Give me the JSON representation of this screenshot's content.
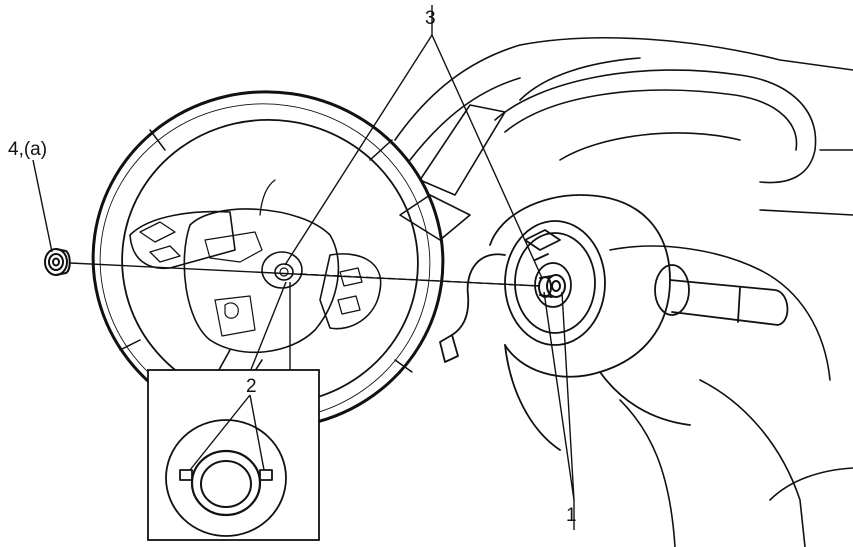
{
  "labels": {
    "label_1": "1",
    "label_2": "2",
    "label_3": "3",
    "label_4": "4,(a)"
  },
  "colors": {
    "line": "#111111",
    "background": "#ffffff"
  }
}
